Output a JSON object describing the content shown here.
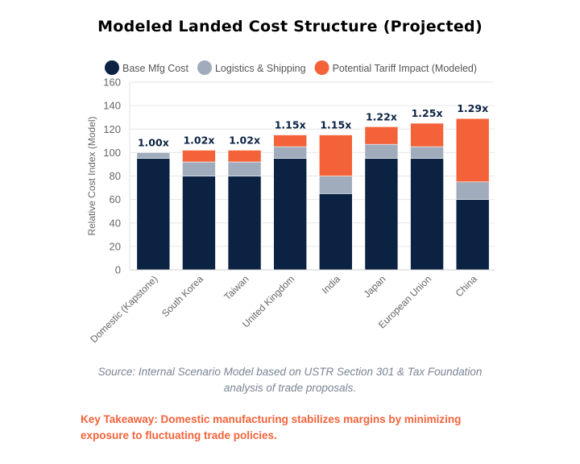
{
  "chart_data": {
    "type": "bar",
    "stacked": true,
    "title": "Modeled Landed Cost Structure (Projected)",
    "xlabel": "",
    "ylabel": "Relative Cost Index (Model)",
    "ylim": [
      0,
      160
    ],
    "yticks": [
      0,
      20,
      40,
      60,
      80,
      100,
      120,
      140,
      160
    ],
    "grid": true,
    "legend_position": "top",
    "categories": [
      "Domestic (Kapstone)",
      "South Korea",
      "Taiwan",
      "United Kingdom",
      "India",
      "Japan",
      "European Union",
      "China"
    ],
    "series": [
      {
        "name": "Base Mfg Cost",
        "color": "#0b2242",
        "values": [
          95,
          80,
          80,
          95,
          65,
          95,
          95,
          60
        ]
      },
      {
        "name": "Logistics & Shipping",
        "color": "#a0acbc",
        "values": [
          5,
          12,
          12,
          10,
          15,
          12,
          10,
          15
        ]
      },
      {
        "name": "Potential Tariff Impact (Modeled)",
        "color": "#f4623a",
        "values": [
          0,
          10,
          10,
          10,
          35,
          15,
          20,
          54
        ]
      }
    ],
    "data_labels": [
      "1.00x",
      "1.02x",
      "1.02x",
      "1.15x",
      "1.15x",
      "1.22x",
      "1.25x",
      "1.29x"
    ]
  },
  "source": "Source: Internal Scenario Model based on USTR Section 301 & Tax Foundation analysis of trade proposals.",
  "takeaway": "Key Takeaway: Domestic manufacturing stabilizes margins by minimizing exposure to fluctuating trade policies."
}
